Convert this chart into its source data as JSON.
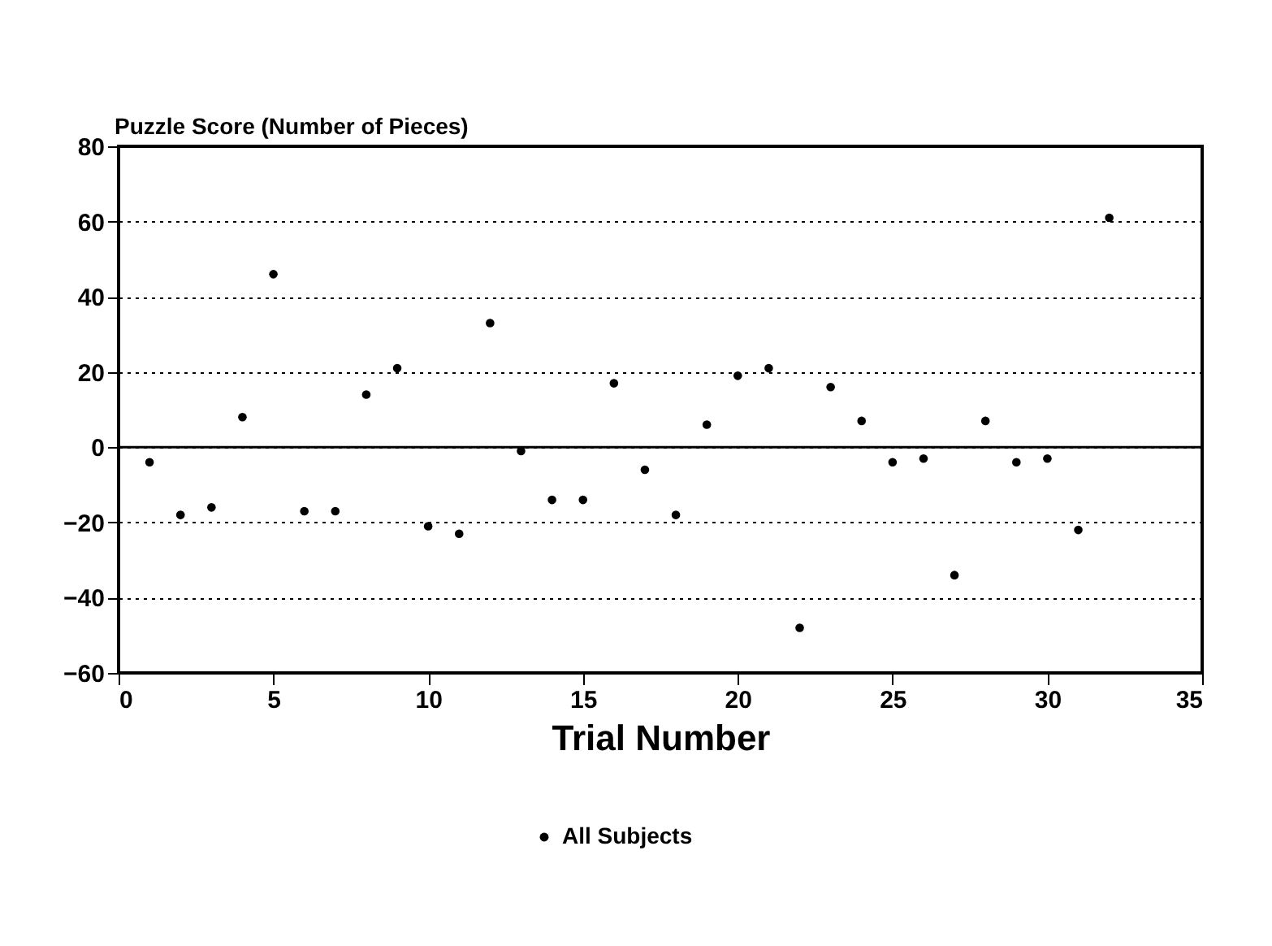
{
  "chart_data": {
    "type": "scatter",
    "ylabel": "Puzzle Score (Number of Pieces)",
    "xlabel": "Trial Number",
    "x": [
      1,
      2,
      3,
      4,
      5,
      6,
      7,
      8,
      9,
      10,
      11,
      12,
      13,
      14,
      15,
      16,
      17,
      18,
      19,
      20,
      21,
      22,
      23,
      24,
      25,
      26,
      27,
      28,
      29,
      30,
      31,
      32
    ],
    "series": [
      {
        "name": "All Subjects",
        "color": "#000000",
        "values": [
          -4,
          -18,
          -16,
          8,
          46,
          -17,
          -17,
          14,
          21,
          -21,
          -23,
          33,
          -1,
          -14,
          -14,
          17,
          -6,
          -18,
          6,
          19,
          21,
          -48,
          16,
          7,
          -4,
          -3,
          -34,
          7,
          -4,
          -3,
          -22,
          61
        ]
      }
    ],
    "xlim": [
      0,
      35
    ],
    "xticks": [
      0,
      5,
      10,
      15,
      20,
      25,
      30,
      35
    ],
    "ylim": [
      -60,
      80
    ],
    "yticks": [
      -60,
      -40,
      -20,
      0,
      20,
      40,
      60,
      80
    ],
    "grid": "y",
    "marker": "circle",
    "legend": "bottom",
    "ref_lines": [
      {
        "axis": "y",
        "value": 0,
        "label": null
      }
    ]
  }
}
